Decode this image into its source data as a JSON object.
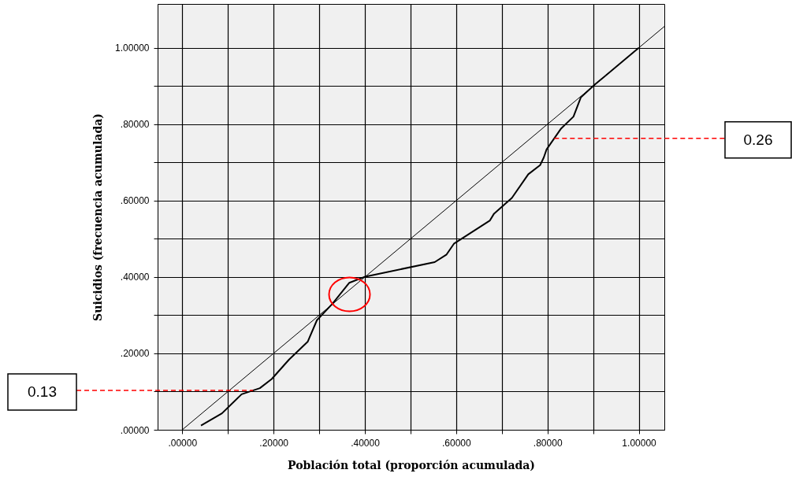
{
  "chart_data": {
    "type": "line",
    "xlabel": "Población total (proporción acumulada)",
    "ylabel": "Suicidios (frecuencia acumulada)",
    "xlim": [
      -0.054,
      1.056
    ],
    "ylim": [
      0,
      1.115
    ],
    "xticks": [
      {
        "value": 0,
        "label": ".00000"
      },
      {
        "value": 0.1,
        "label": null
      },
      {
        "value": 0.2,
        "label": ".20000"
      },
      {
        "value": 0.3,
        "label": null
      },
      {
        "value": 0.4,
        "label": ".40000"
      },
      {
        "value": 0.5,
        "label": null
      },
      {
        "value": 0.6,
        "label": ".60000"
      },
      {
        "value": 0.7,
        "label": null
      },
      {
        "value": 0.8,
        "label": ".80000"
      },
      {
        "value": 0.9,
        "label": null
      },
      {
        "value": 1.0,
        "label": "1.00000"
      }
    ],
    "yticks": [
      {
        "value": 0,
        "label": ".00000"
      },
      {
        "value": 0.1,
        "label": null
      },
      {
        "value": 0.2,
        "label": ".20000"
      },
      {
        "value": 0.3,
        "label": null
      },
      {
        "value": 0.4,
        "label": ".40000"
      },
      {
        "value": 0.5,
        "label": null
      },
      {
        "value": 0.6,
        "label": ".60000"
      },
      {
        "value": 0.7,
        "label": null
      },
      {
        "value": 0.8,
        "label": ".80000"
      },
      {
        "value": 0.9,
        "label": null
      },
      {
        "value": 1.0,
        "label": "1.00000"
      }
    ],
    "grid": true,
    "series": [
      {
        "color": "#000000",
        "x": [
          0.041,
          0.087,
          0.13,
          0.17,
          0.196,
          0.234,
          0.275,
          0.295,
          0.329,
          0.366,
          0.401,
          0.553,
          0.579,
          0.595,
          0.674,
          0.683,
          0.722,
          0.758,
          0.784,
          0.792,
          0.798,
          0.83,
          0.857,
          0.873,
          0.902,
          1.0
        ],
        "values": [
          0.011,
          0.043,
          0.093,
          0.109,
          0.133,
          0.184,
          0.231,
          0.287,
          0.33,
          0.385,
          0.401,
          0.439,
          0.459,
          0.487,
          0.548,
          0.566,
          0.607,
          0.669,
          0.693,
          0.713,
          0.734,
          0.789,
          0.82,
          0.87,
          0.902,
          1.0
        ]
      },
      {
        "color": "#000000",
        "x": [
          0,
          1.056
        ],
        "values": [
          0,
          1.056
        ]
      }
    ],
    "ref_lines": [
      {
        "axis": "y",
        "value": 0.103,
        "color": "#ff0000",
        "line_style": "dashed"
      },
      {
        "axis": "y",
        "value": 0.763,
        "color": "#ff0000",
        "line_style": "dashed"
      }
    ],
    "annotations": [
      "0.13",
      "0.26"
    ]
  }
}
